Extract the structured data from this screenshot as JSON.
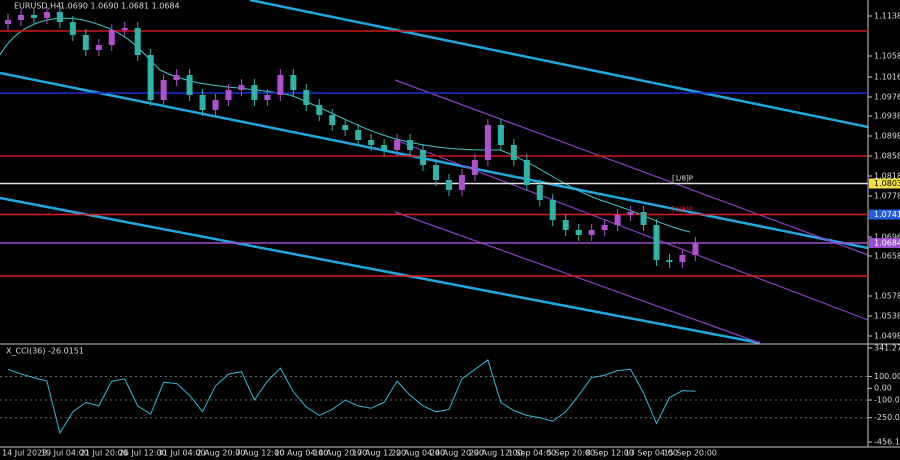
{
  "chart_data": [
    {
      "type": "candlestick",
      "title": "EURUSD,H4",
      "subtitle": "1.0690 1.0690 1.0681 1.0684",
      "categories": [
        "14 Jul 2023",
        null,
        null,
        "19 Jul 04:00",
        null,
        null,
        "21 Jul 20:00",
        null,
        null,
        "26 Jul 12:00",
        null,
        null,
        "31 Jul 04:00",
        null,
        null,
        "2 Aug 20:00",
        null,
        null,
        "7 Aug 12:00",
        null,
        null,
        "10 Aug 04:00",
        null,
        null,
        "14 Aug 20:00",
        null,
        null,
        "17 Aug 12:00",
        null,
        null,
        "22 Aug 04:00",
        null,
        null,
        "24 Aug 20:00",
        null,
        null,
        "29 Aug 12:00",
        null,
        null,
        "1 Sep 04:00",
        null,
        null,
        "5 Sep 20:00",
        null,
        null,
        "8 Sep 12:00",
        null,
        null,
        "13 Sep 04:00",
        null,
        null,
        "15 Sep 20:00",
        null,
        null
      ],
      "open": [
        1.1122,
        1.113,
        1.114,
        1.1134,
        1.1146,
        1.1126,
        1.11,
        1.107,
        1.108,
        1.111,
        1.1114,
        1.106,
        1.097,
        1.101,
        1.102,
        1.098,
        1.095,
        1.097,
        1.099,
        1.1,
        1.097,
        1.098,
        1.102,
        1.099,
        1.096,
        1.094,
        1.092,
        1.091,
        1.089,
        1.088,
        1.087,
        1.089,
        1.087,
        1.084,
        1.081,
        1.079,
        1.082,
        1.085,
        1.092,
        1.088,
        1.085,
        1.08,
        1.077,
        1.073,
        1.071,
        1.07,
        1.071,
        1.072,
        1.074,
        1.0746,
        1.072,
        1.065,
        1.0646,
        1.066
      ],
      "high": [
        1.1142,
        1.1152,
        1.1152,
        1.1158,
        1.1158,
        1.1138,
        1.1112,
        1.1092,
        1.1122,
        1.1126,
        1.1126,
        1.1072,
        1.1022,
        1.1032,
        1.1032,
        1.0992,
        1.0982,
        1.1002,
        1.1012,
        1.1012,
        1.0992,
        1.1032,
        1.1032,
        1.1002,
        1.0972,
        1.0952,
        1.0932,
        1.0922,
        1.0902,
        1.0892,
        1.0902,
        1.0902,
        1.0882,
        1.0852,
        1.0822,
        1.0832,
        1.0862,
        1.0932,
        1.0932,
        1.0892,
        1.0862,
        1.0812,
        1.0782,
        1.0742,
        1.0722,
        1.0722,
        1.0732,
        1.0752,
        1.0758,
        1.0758,
        1.0732,
        1.0662,
        1.0672,
        1.0696
      ],
      "low": [
        1.111,
        1.1118,
        1.1122,
        1.1122,
        1.1114,
        1.1088,
        1.1058,
        1.1058,
        1.1068,
        1.1098,
        1.1048,
        1.0958,
        1.0958,
        1.0998,
        1.0968,
        1.0938,
        1.0938,
        1.0958,
        1.0978,
        1.0958,
        1.0958,
        1.0968,
        1.0978,
        1.0948,
        1.0928,
        1.0908,
        1.0898,
        1.0878,
        1.0868,
        1.0858,
        1.0858,
        1.0858,
        1.0828,
        1.0798,
        1.0778,
        1.0778,
        1.0808,
        1.0838,
        1.0868,
        1.0838,
        1.0788,
        1.0758,
        1.0718,
        1.0698,
        1.0688,
        1.0688,
        1.0698,
        1.0708,
        1.0728,
        1.0708,
        1.0638,
        1.0634,
        1.0634,
        1.0648
      ],
      "close": [
        1.113,
        1.114,
        1.1134,
        1.1146,
        1.1126,
        1.11,
        1.107,
        1.108,
        1.111,
        1.1114,
        1.106,
        1.097,
        1.101,
        1.102,
        1.098,
        1.095,
        1.097,
        1.099,
        1.1,
        1.097,
        1.098,
        1.102,
        1.099,
        1.096,
        1.094,
        1.092,
        1.091,
        1.089,
        1.088,
        1.087,
        1.089,
        1.087,
        1.084,
        1.081,
        1.079,
        1.082,
        1.085,
        1.092,
        1.088,
        1.085,
        1.08,
        1.077,
        1.073,
        1.071,
        1.07,
        1.071,
        1.072,
        1.074,
        1.0746,
        1.072,
        1.065,
        1.0646,
        1.066,
        1.0684
      ],
      "up_color": "#b04fd0",
      "down_color": "#2fb3a8",
      "ylim": [
        1.0484,
        1.117
      ],
      "yticks": [
        1.1138,
        1.1058,
        1.1016,
        1.0976,
        1.0938,
        1.0898,
        1.0858,
        1.0818,
        1.0778,
        1.0696,
        1.0658,
        1.0578,
        1.0538,
        1.0498
      ],
      "levels": [
        {
          "value": 1.1108,
          "color": "#d01818"
        },
        {
          "value": 1.0984,
          "color": "#1830d0"
        },
        {
          "value": 1.0858,
          "color": "#d01818"
        },
        {
          "value": 1.0803,
          "color": "#e0e0e0",
          "tag": "[1/8]P",
          "box_color": "#f0e040"
        },
        {
          "value": 1.0741,
          "color": "#e02020",
          "tag": "[0/8]P",
          "box_color": "#2060e0"
        },
        {
          "value": 1.0684,
          "color": "#9a4fd0",
          "box_color": "#9a4fd0"
        },
        {
          "value": 1.0618,
          "color": "#e02020"
        }
      ]
    },
    {
      "type": "line",
      "title": "X_CCI(36) -26.0151",
      "series": [
        {
          "name": "X_CCI(36)",
          "color": "#35b8d8",
          "values": [
            160,
            120,
            90,
            60,
            -380,
            -200,
            -120,
            -150,
            60,
            80,
            -150,
            -220,
            50,
            40,
            -60,
            -200,
            20,
            120,
            140,
            -100,
            60,
            170,
            -30,
            -160,
            -230,
            -180,
            -100,
            -150,
            -170,
            -120,
            60,
            -60,
            -150,
            -200,
            -180,
            80,
            160,
            240,
            -120,
            -190,
            -230,
            -250,
            -280,
            -200,
            -60,
            90,
            110,
            150,
            160,
            -40,
            -300,
            -80,
            -20,
            -26.0151
          ]
        }
      ],
      "ylim": [
        -456.1757,
        341.2705
      ],
      "yticks": [
        341.2705,
        {
          "value": 100,
          "label": "100.00"
        },
        {
          "value": 0,
          "label": "0.00"
        },
        {
          "value": -100,
          "label": "-100.00"
        },
        {
          "value": -250,
          "label": "-250.00"
        },
        -456.1757
      ]
    }
  ]
}
